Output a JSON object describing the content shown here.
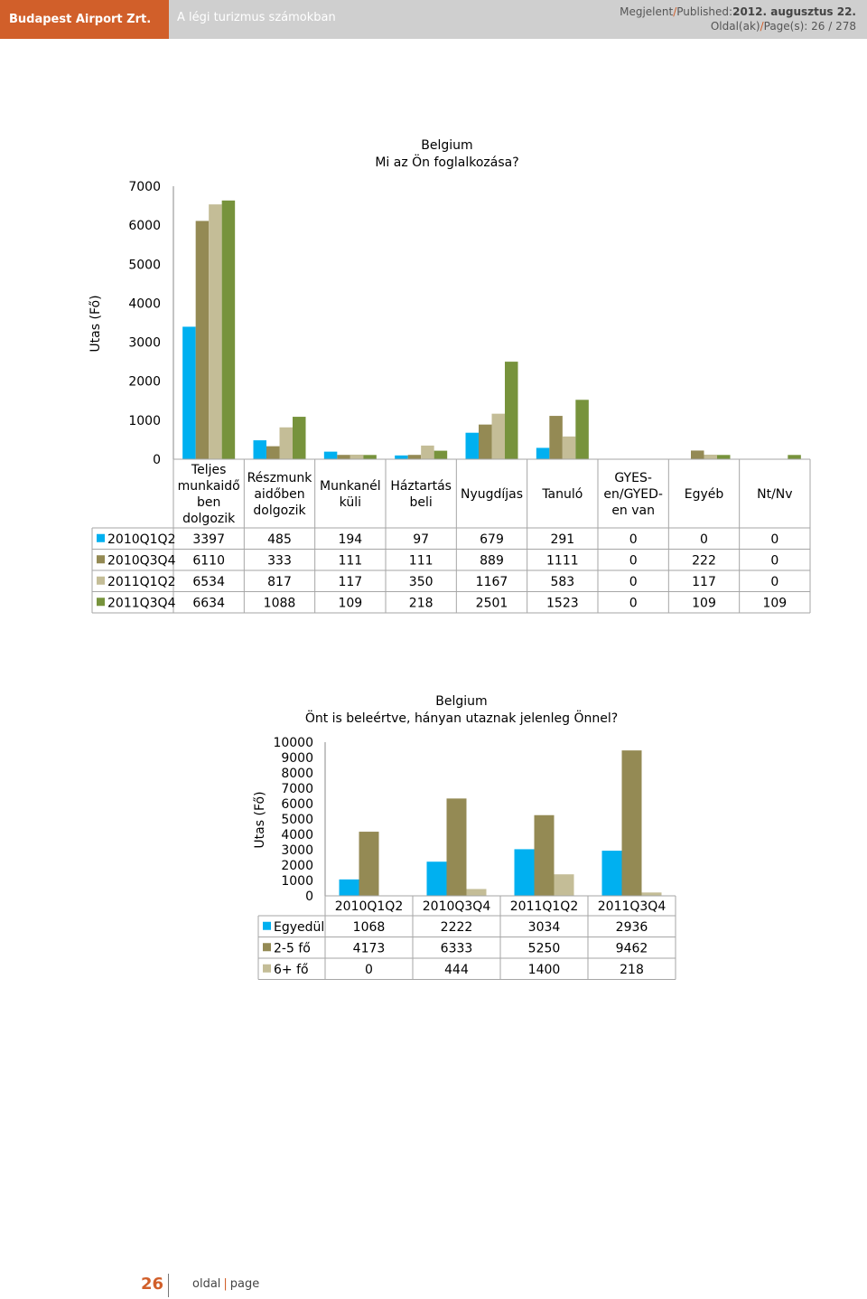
{
  "header": {
    "brand": "Budapest Airport Zrt.",
    "subtitle": "A légi turizmus számokban",
    "published_label": "Megjelent",
    "published_label_en": "Published:",
    "published_date": "2012. augusztus 22.",
    "page_label": "Oldal(ak)",
    "page_label_en": "Page(s): 26 / 278"
  },
  "footer": {
    "page_number": "26",
    "label": "oldal",
    "label_en": "page"
  },
  "colors": {
    "s1": "#00b0f0",
    "s2": "#948a54",
    "s3": "#c4bd97",
    "s4": "#77933c"
  },
  "chart_data": [
    {
      "type": "bar",
      "title": "Belgium",
      "subtitle": "Mi az Ön foglalkozása?",
      "ylabel": "Utas (Fő)",
      "ylim": [
        0,
        7000
      ],
      "yticks": [
        "0",
        "1000",
        "2000",
        "3000",
        "4000",
        "5000",
        "6000",
        "7000"
      ],
      "categories": [
        [
          "Teljes",
          "munkaidő",
          "ben",
          "dolgozik"
        ],
        [
          "Részmunk",
          "aidőben",
          "dolgozik"
        ],
        [
          "Munkanél",
          "küli"
        ],
        [
          "Háztartás",
          "beli"
        ],
        [
          "Nyugdíjas"
        ],
        [
          "Tanuló"
        ],
        [
          "GYES-",
          "en/GYED-",
          "en van"
        ],
        [
          "Egyéb"
        ],
        [
          "Nt/Nv"
        ]
      ],
      "series": [
        {
          "name": "2010Q1Q2",
          "values": [
            3397,
            485,
            194,
            97,
            679,
            291,
            0,
            0,
            0
          ]
        },
        {
          "name": "2010Q3Q4",
          "values": [
            6110,
            333,
            111,
            111,
            889,
            1111,
            0,
            222,
            0
          ]
        },
        {
          "name": "2011Q1Q2",
          "values": [
            6534,
            817,
            117,
            350,
            1167,
            583,
            0,
            117,
            0
          ]
        },
        {
          "name": "2011Q3Q4",
          "values": [
            6634,
            1088,
            109,
            218,
            2501,
            1523,
            0,
            109,
            109
          ]
        }
      ]
    },
    {
      "type": "bar",
      "title": "Belgium",
      "subtitle": "Önt is beleértve, hányan utaznak jelenleg Önnel?",
      "ylabel": "Utas (Fő)",
      "ylim": [
        0,
        10000
      ],
      "yticks": [
        "0",
        "1000",
        "2000",
        "3000",
        "4000",
        "5000",
        "6000",
        "7000",
        "8000",
        "9000",
        "10000"
      ],
      "categories": [
        [
          "2010Q1Q2"
        ],
        [
          "2010Q3Q4"
        ],
        [
          "2011Q1Q2"
        ],
        [
          "2011Q3Q4"
        ]
      ],
      "series": [
        {
          "name": "Egyedül",
          "values": [
            1068,
            2222,
            3034,
            2936
          ]
        },
        {
          "name": "2-5 fő",
          "values": [
            4173,
            6333,
            5250,
            9462
          ]
        },
        {
          "name": "6+ fő",
          "values": [
            0,
            444,
            1400,
            218
          ]
        }
      ]
    }
  ]
}
